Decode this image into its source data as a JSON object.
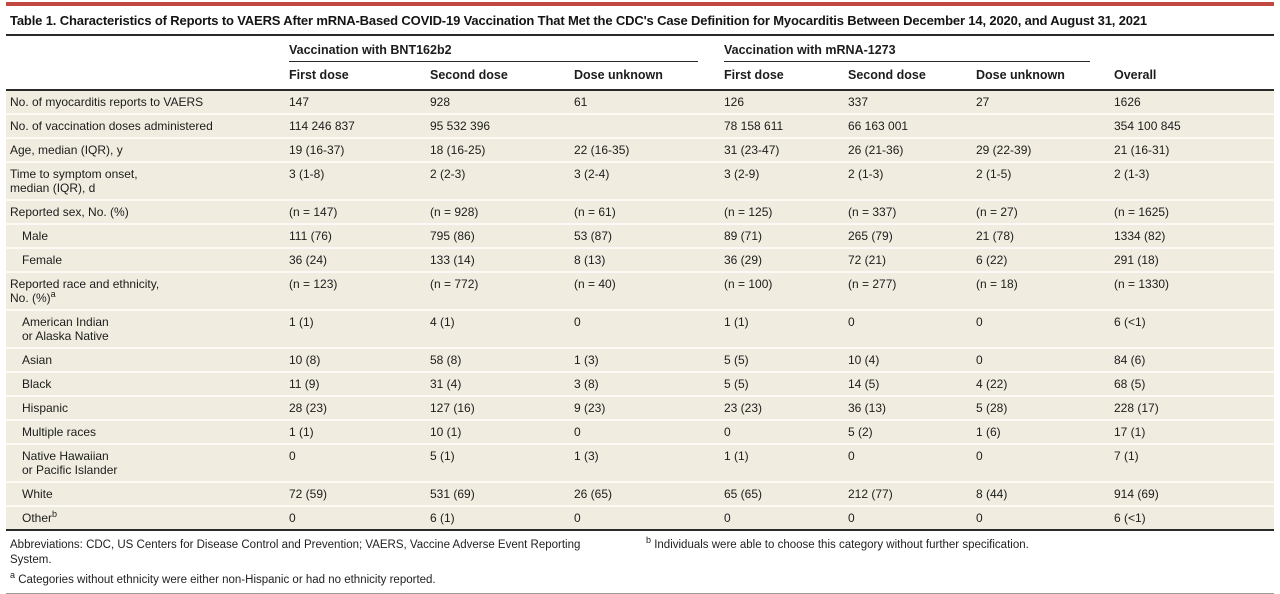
{
  "table": {
    "title": "Table 1. Characteristics of Reports to VAERS After mRNA-Based COVID-19 Vaccination That Met the CDC's Case Definition for Myocarditis Between December 14, 2020, and August 31, 2021",
    "column_groups": [
      {
        "label": "Vaccination with BNT162b2",
        "span": 3
      },
      {
        "label": "Vaccination with mRNA-1273",
        "span": 3
      }
    ],
    "columns": [
      "First dose",
      "Second dose",
      "Dose unknown",
      "First dose",
      "Second dose",
      "Dose unknown",
      "Overall"
    ],
    "rows": [
      {
        "label": "No. of myocarditis reports to VAERS",
        "indent": false,
        "values": [
          "147",
          "928",
          "61",
          "126",
          "337",
          "27",
          "1626"
        ]
      },
      {
        "label": "No. of vaccination doses administered",
        "indent": false,
        "values": [
          "114 246 837",
          "95 532 396",
          "",
          "78 158 611",
          "66 163 001",
          "",
          "354 100 845"
        ]
      },
      {
        "label": "Age, median (IQR), y",
        "indent": false,
        "values": [
          "19 (16-37)",
          "18 (16-25)",
          "22 (16-35)",
          "31 (23-47)",
          "26 (21-36)",
          "29 (22-39)",
          "21 (16-31)"
        ]
      },
      {
        "label": "Time to symptom onset,\nmedian (IQR), d",
        "indent": false,
        "values": [
          "3 (1-8)",
          "2 (2-3)",
          "3 (2-4)",
          "3 (2-9)",
          "2 (1-3)",
          "2 (1-5)",
          "2 (1-3)"
        ]
      },
      {
        "label": "Reported sex, No. (%)",
        "indent": false,
        "values": [
          "(n = 147)",
          "(n = 928)",
          "(n = 61)",
          "(n = 125)",
          "(n = 337)",
          "(n = 27)",
          "(n = 1625)"
        ]
      },
      {
        "label": "Male",
        "indent": true,
        "values": [
          "111 (76)",
          "795 (86)",
          "53 (87)",
          "89 (71)",
          "265 (79)",
          "21 (78)",
          "1334 (82)"
        ]
      },
      {
        "label": "Female",
        "indent": true,
        "values": [
          "36 (24)",
          "133 (14)",
          "8 (13)",
          "36 (29)",
          "72 (21)",
          "6 (22)",
          "291 (18)"
        ]
      },
      {
        "label": "Reported race and ethnicity,\nNo. (%)^a",
        "indent": false,
        "values": [
          "(n = 123)",
          "(n = 772)",
          "(n = 40)",
          "(n = 100)",
          "(n = 277)",
          "(n = 18)",
          "(n = 1330)"
        ]
      },
      {
        "label": "American Indian\nor Alaska Native",
        "indent": true,
        "values": [
          "1 (1)",
          "4 (1)",
          "0",
          "1 (1)",
          "0",
          "0",
          "6 (<1)"
        ]
      },
      {
        "label": "Asian",
        "indent": true,
        "values": [
          "10 (8)",
          "58 (8)",
          "1 (3)",
          "5 (5)",
          "10 (4)",
          "0",
          "84 (6)"
        ]
      },
      {
        "label": "Black",
        "indent": true,
        "values": [
          "11 (9)",
          "31 (4)",
          "3 (8)",
          "5 (5)",
          "14 (5)",
          "4 (22)",
          "68 (5)"
        ]
      },
      {
        "label": "Hispanic",
        "indent": true,
        "values": [
          "28 (23)",
          "127 (16)",
          "9 (23)",
          "23 (23)",
          "36 (13)",
          "5 (28)",
          "228 (17)"
        ]
      },
      {
        "label": "Multiple races",
        "indent": true,
        "values": [
          "1 (1)",
          "10 (1)",
          "0",
          "0",
          "5 (2)",
          "1 (6)",
          "17 (1)"
        ]
      },
      {
        "label": "Native Hawaiian\nor Pacific Islander",
        "indent": true,
        "values": [
          "0",
          "5 (1)",
          "1 (3)",
          "1 (1)",
          "0",
          "0",
          "7 (1)"
        ]
      },
      {
        "label": "White",
        "indent": true,
        "values": [
          "72 (59)",
          "531 (69)",
          "26 (65)",
          "65 (65)",
          "212 (77)",
          "8 (44)",
          "914 (69)"
        ]
      },
      {
        "label": "Other^b",
        "indent": true,
        "values": [
          "0",
          "6 (1)",
          "0",
          "0",
          "0",
          "0",
          "6 (<1)"
        ]
      }
    ],
    "footnotes": {
      "left": [
        "Abbreviations: CDC, US Centers for Disease Control and Prevention; VAERS, Vaccine Adverse Event Reporting System.",
        "^a Categories without ethnicity were either non-Hispanic or had no ethnicity reported."
      ],
      "right": [
        "^b Individuals were able to choose this category without further specification."
      ]
    },
    "colors": {
      "accent_red": "#c24942",
      "body_bg": "#f0ede0"
    }
  }
}
